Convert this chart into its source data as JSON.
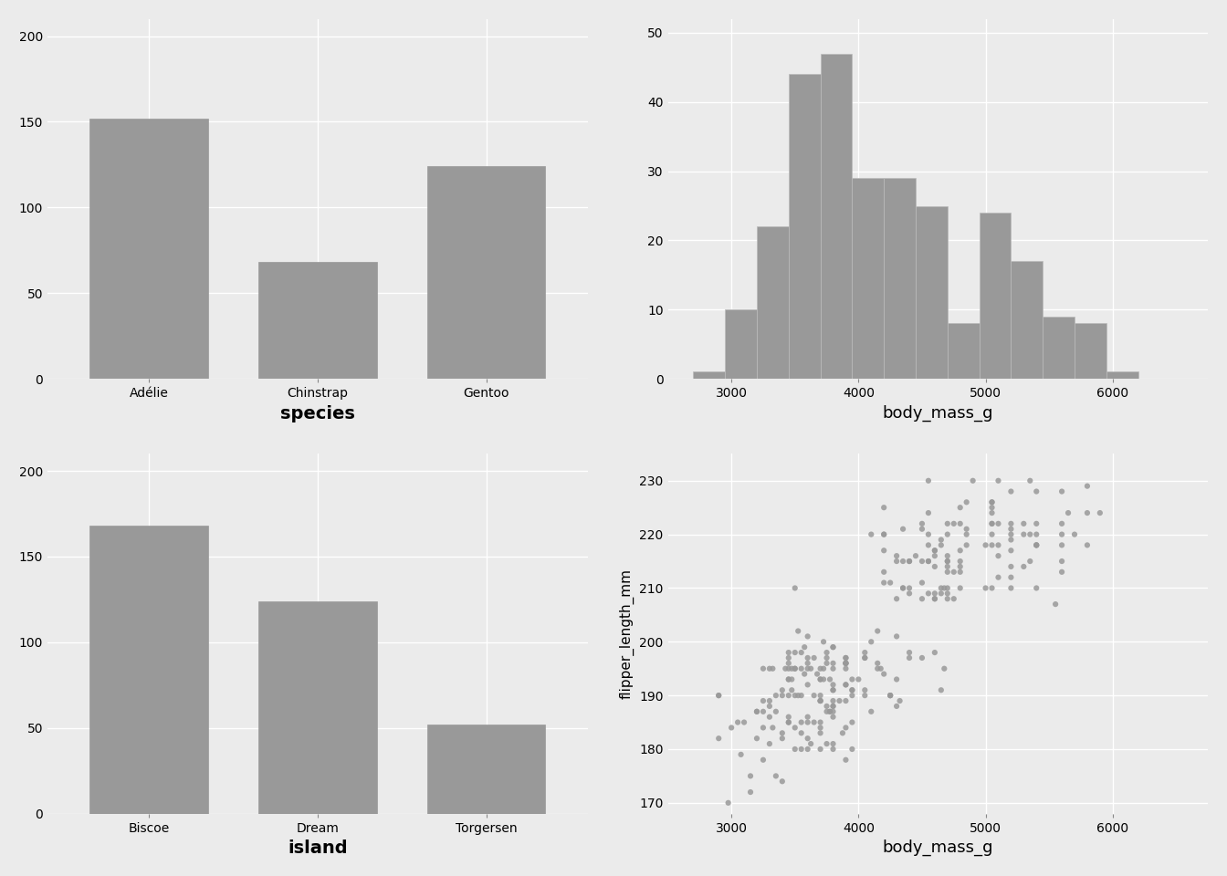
{
  "bar_color": "#999999",
  "bg_color": "#EBEBEB",
  "grid_color": "#FFFFFF",
  "species_categories": [
    "Adélie",
    "Chinstrap",
    "Gentoo"
  ],
  "species_counts": [
    152,
    68,
    124
  ],
  "island_categories": [
    "Biscoe",
    "Dream",
    "Torgersen"
  ],
  "island_counts": [
    168,
    124,
    52
  ],
  "hist_bin_edges": [
    2700,
    2950,
    3200,
    3450,
    3700,
    3950,
    4200,
    4450,
    4700,
    4950,
    5200,
    5450,
    5700,
    5950,
    6200,
    6450
  ],
  "hist_counts": [
    1,
    10,
    22,
    44,
    47,
    29,
    29,
    25,
    8,
    24,
    17,
    9,
    8,
    1,
    0
  ],
  "scatter_body_mass": [
    3750,
    3800,
    3250,
    3450,
    3650,
    3625,
    4675,
    3475,
    4250,
    3300,
    3700,
    3200,
    3800,
    4400,
    3700,
    3450,
    4500,
    3325,
    4200,
    3400,
    3600,
    3800,
    3950,
    3800,
    3800,
    3550,
    3200,
    3150,
    3950,
    3250,
    3900,
    3300,
    3900,
    3325,
    4150,
    3950,
    3550,
    3300,
    4650,
    3150,
    3900,
    3100,
    4400,
    3000,
    4600,
    3425,
    2975,
    3450,
    3600,
    3400,
    2900,
    3075,
    2900,
    3475,
    3450,
    3750,
    3700,
    3725,
    3200,
    3400,
    3600,
    3950,
    3800,
    3675,
    3450,
    3600,
    3550,
    3800,
    3500,
    3900,
    3475,
    4300,
    3450,
    4050,
    2900,
    3500,
    3900,
    3650,
    3525,
    3725,
    3950,
    3250,
    3750,
    4150,
    3700,
    3800,
    3775,
    3700,
    4050,
    3575,
    4050,
    3300,
    3700,
    4250,
    3350,
    3450,
    3500,
    3600,
    3900,
    3700,
    3800,
    3775,
    3900,
    3900,
    4325,
    3500,
    3700,
    3450,
    4300,
    3550,
    3250,
    3650,
    4150,
    3500,
    3550,
    3900,
    3400,
    3875,
    4250,
    3400,
    3900,
    3775,
    4300,
    3350,
    3700,
    3450,
    3600,
    3050,
    3600,
    4050,
    3450,
    3800,
    3700,
    3750,
    3800,
    3500,
    3900,
    4050,
    3350,
    3600,
    4100,
    3750,
    3750,
    3950,
    3600,
    3800,
    3575,
    3850,
    3625,
    3250,
    4000,
    4100,
    3300,
    3800,
    3700,
    3900,
    3550,
    4175,
    3525,
    3725,
    3800,
    4675,
    4250,
    4400,
    4550,
    4300,
    3500,
    4500,
    4650,
    4700,
    4400,
    4800,
    4450,
    4600,
    4750,
    4650,
    4600,
    4350,
    4350,
    4600,
    4700,
    4650,
    4550,
    4800,
    4700,
    4400,
    4550,
    4300,
    4800,
    5050,
    4100,
    5050,
    4650,
    5550,
    4900,
    4850,
    4700,
    4200,
    5200,
    4600,
    4500,
    4600,
    4800,
    5000,
    4600,
    4750,
    4800,
    5200,
    4200,
    4700,
    4350,
    4800,
    5350,
    4700,
    5050,
    4200,
    5200,
    4750,
    4200,
    4700,
    4550,
    4300,
    4850,
    4700,
    4550,
    4500,
    4200,
    4550,
    4350,
    4600,
    5350,
    4500,
    4400,
    5600,
    4850,
    4800,
    5400,
    5200,
    4700,
    5100,
    4550,
    5300,
    4500,
    5300,
    4200,
    5600,
    5800,
    5400,
    5200,
    5650,
    5200,
    5400,
    5800,
    5000,
    5050,
    5100,
    5600,
    5100,
    5400,
    5400,
    5600,
    5100,
    5600,
    5200,
    5800,
    5400,
    5400,
    5200,
    5600,
    5100,
    5350,
    4700,
    5200,
    5050,
    5700,
    5050,
    5050,
    5900,
    5300,
    4850,
    5050,
    5050
  ],
  "scatter_flipper": [
    181,
    186,
    195,
    193,
    190,
    181,
    195,
    193,
    190,
    186,
    180,
    182,
    191,
    198,
    185,
    195,
    197,
    184,
    194,
    174,
    180,
    189,
    185,
    180,
    187,
    183,
    187,
    172,
    180,
    178,
    178,
    188,
    184,
    195,
    196,
    190,
    180,
    181,
    191,
    175,
    196,
    185,
    197,
    184,
    198,
    195,
    170,
    196,
    185,
    190,
    182,
    179,
    190,
    191,
    186,
    188,
    190,
    200,
    187,
    191,
    186,
    193,
    181,
    194,
    185,
    195,
    185,
    192,
    184,
    192,
    195,
    188,
    190,
    198,
    190,
    190,
    196,
    197,
    190,
    195,
    191,
    184,
    187,
    195,
    189,
    196,
    187,
    193,
    191,
    194,
    190,
    189,
    189,
    190,
    187,
    193,
    195,
    197,
    189,
    184,
    191,
    193,
    195,
    197,
    189,
    195,
    189,
    185,
    193,
    195,
    189,
    185,
    202,
    198,
    190,
    196,
    182,
    183,
    190,
    183,
    197,
    187,
    201,
    175,
    193,
    197,
    201,
    185,
    182,
    197,
    198,
    199,
    195,
    196,
    199,
    180,
    196,
    197,
    190,
    192,
    200,
    197,
    198,
    191,
    196,
    188,
    199,
    189,
    195,
    187,
    193,
    187,
    195,
    188,
    183,
    192,
    198,
    195,
    202,
    193,
    195,
    210,
    211,
    210,
    218,
    215,
    210,
    211,
    219,
    209,
    215,
    214,
    216,
    214,
    213,
    210,
    217,
    210,
    221,
    209,
    222,
    218,
    215,
    213,
    215,
    215,
    215,
    216,
    215,
    210,
    220,
    222,
    209,
    207,
    230,
    220,
    220,
    213,
    219,
    208,
    208,
    208,
    225,
    210,
    216,
    222,
    217,
    210,
    225,
    213,
    215,
    210,
    220,
    210,
    225,
    217,
    220,
    208,
    220,
    208,
    224,
    208,
    221,
    214,
    220,
    221,
    211,
    230,
    210,
    217,
    230,
    222,
    209,
    222,
    218,
    222,
    210,
    214,
    215,
    222,
    209,
    214,
    215,
    222,
    220,
    218,
    224,
    222,
    212,
    224,
    217,
    228,
    218,
    218,
    220,
    230,
    228,
    212,
    218,
    218,
    215,
    216,
    220,
    222,
    229,
    218,
    220,
    221,
    213,
    218,
    215,
    216,
    228,
    224,
    220,
    218,
    226,
    224,
    220,
    226,
    222,
    226,
    230,
    220,
    222,
    226,
    218,
    222,
    220,
    218,
    218,
    224,
    228,
    220,
    222,
    224,
    222,
    218,
    224,
    230,
    220
  ],
  "xlabel_fontsize": 13,
  "ylabel_fontsize": 11,
  "tick_fontsize": 10,
  "title_fontsize": 14
}
